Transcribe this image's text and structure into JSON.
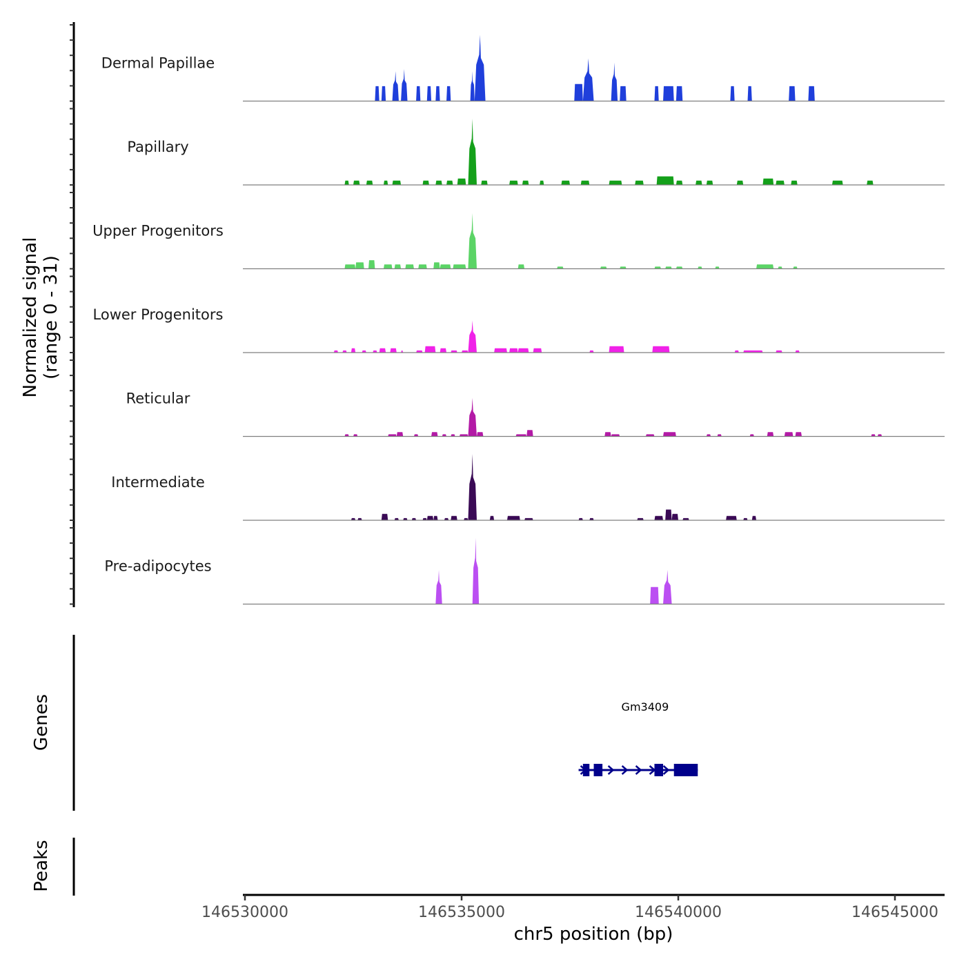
{
  "chart_data": {
    "type": "area",
    "title": "",
    "ylabel": "Normalized signal",
    "ylabel_range": "(range 0 - 31)",
    "ylim": [
      0,
      31
    ],
    "xlabel": "chr5 position (bp)",
    "xlim": [
      146530000,
      146546000
    ],
    "x_ticks": [
      146530000,
      146535000,
      146540000,
      146545000
    ],
    "x_tick_labels": [
      "146530000",
      "146535000",
      "146540000",
      "146545000"
    ],
    "series": [
      {
        "name": "Dermal Papillae",
        "color": "#1f3fdb",
        "peaks": [
          {
            "start": 146533000,
            "end": 146533100,
            "value": 7
          },
          {
            "start": 146533150,
            "end": 146533250,
            "value": 7
          },
          {
            "start": 146533400,
            "end": 146533550,
            "value": 14
          },
          {
            "start": 146533600,
            "end": 146533750,
            "value": 15
          },
          {
            "start": 146533950,
            "end": 146534050,
            "value": 7
          },
          {
            "start": 146534200,
            "end": 146534300,
            "value": 7
          },
          {
            "start": 146534400,
            "end": 146534500,
            "value": 7
          },
          {
            "start": 146534650,
            "end": 146534750,
            "value": 7
          },
          {
            "start": 146535200,
            "end": 146535300,
            "value": 14
          },
          {
            "start": 146535300,
            "end": 146535550,
            "value": 31
          },
          {
            "start": 146537600,
            "end": 146537800,
            "value": 8
          },
          {
            "start": 146537800,
            "end": 146538050,
            "value": 20
          },
          {
            "start": 146538450,
            "end": 146538600,
            "value": 18
          },
          {
            "start": 146538650,
            "end": 146538800,
            "value": 7
          },
          {
            "start": 146539450,
            "end": 146539550,
            "value": 7
          },
          {
            "start": 146539650,
            "end": 146539900,
            "value": 7
          },
          {
            "start": 146539950,
            "end": 146540100,
            "value": 7
          },
          {
            "start": 146541200,
            "end": 146541300,
            "value": 7
          },
          {
            "start": 146541600,
            "end": 146541700,
            "value": 7
          },
          {
            "start": 146542550,
            "end": 146542700,
            "value": 7
          },
          {
            "start": 146543000,
            "end": 146543150,
            "value": 7
          }
        ]
      },
      {
        "name": "Papillary",
        "color": "#14a01a",
        "peaks": [
          {
            "start": 146532300,
            "end": 146532400,
            "value": 2
          },
          {
            "start": 146532500,
            "end": 146532650,
            "value": 2
          },
          {
            "start": 146532800,
            "end": 146532950,
            "value": 2
          },
          {
            "start": 146533200,
            "end": 146533300,
            "value": 2
          },
          {
            "start": 146533400,
            "end": 146533600,
            "value": 2
          },
          {
            "start": 146534100,
            "end": 146534250,
            "value": 2
          },
          {
            "start": 146534400,
            "end": 146534550,
            "value": 2
          },
          {
            "start": 146534650,
            "end": 146534800,
            "value": 2
          },
          {
            "start": 146534900,
            "end": 146535100,
            "value": 3
          },
          {
            "start": 146535150,
            "end": 146535350,
            "value": 31
          },
          {
            "start": 146535450,
            "end": 146535600,
            "value": 2
          },
          {
            "start": 146536100,
            "end": 146536300,
            "value": 2
          },
          {
            "start": 146536400,
            "end": 146536550,
            "value": 2
          },
          {
            "start": 146536800,
            "end": 146536900,
            "value": 2
          },
          {
            "start": 146537300,
            "end": 146537500,
            "value": 2
          },
          {
            "start": 146537750,
            "end": 146537950,
            "value": 2
          },
          {
            "start": 146538400,
            "end": 146538700,
            "value": 2
          },
          {
            "start": 146539000,
            "end": 146539200,
            "value": 2
          },
          {
            "start": 146539500,
            "end": 146539900,
            "value": 4
          },
          {
            "start": 146539950,
            "end": 146540100,
            "value": 2
          },
          {
            "start": 146540400,
            "end": 146540550,
            "value": 2
          },
          {
            "start": 146540650,
            "end": 146540800,
            "value": 2
          },
          {
            "start": 146541350,
            "end": 146541500,
            "value": 2
          },
          {
            "start": 146541950,
            "end": 146542200,
            "value": 3
          },
          {
            "start": 146542250,
            "end": 146542450,
            "value": 2
          },
          {
            "start": 146542600,
            "end": 146542750,
            "value": 2
          },
          {
            "start": 146543550,
            "end": 146543800,
            "value": 2
          },
          {
            "start": 146544350,
            "end": 146544500,
            "value": 2
          }
        ]
      },
      {
        "name": "Upper Progenitors",
        "color": "#5bd466",
        "peaks": [
          {
            "start": 146532300,
            "end": 146532550,
            "value": 2
          },
          {
            "start": 146532550,
            "end": 146532750,
            "value": 3
          },
          {
            "start": 146532850,
            "end": 146533000,
            "value": 4
          },
          {
            "start": 146533200,
            "end": 146533400,
            "value": 2
          },
          {
            "start": 146533450,
            "end": 146533600,
            "value": 2
          },
          {
            "start": 146533700,
            "end": 146533900,
            "value": 2
          },
          {
            "start": 146534000,
            "end": 146534200,
            "value": 2
          },
          {
            "start": 146534350,
            "end": 146534500,
            "value": 3
          },
          {
            "start": 146534500,
            "end": 146534750,
            "value": 2
          },
          {
            "start": 146534800,
            "end": 146535100,
            "value": 2
          },
          {
            "start": 146535150,
            "end": 146535350,
            "value": 26
          },
          {
            "start": 146536300,
            "end": 146536450,
            "value": 2
          },
          {
            "start": 146537200,
            "end": 146537350,
            "value": 1
          },
          {
            "start": 146538200,
            "end": 146538350,
            "value": 1
          },
          {
            "start": 146538650,
            "end": 146538800,
            "value": 1
          },
          {
            "start": 146539450,
            "end": 146539600,
            "value": 1
          },
          {
            "start": 146539700,
            "end": 146539850,
            "value": 1
          },
          {
            "start": 146539950,
            "end": 146540100,
            "value": 1
          },
          {
            "start": 146540450,
            "end": 146540550,
            "value": 1
          },
          {
            "start": 146540850,
            "end": 146540950,
            "value": 1
          },
          {
            "start": 146541800,
            "end": 146542200,
            "value": 2
          },
          {
            "start": 146542300,
            "end": 146542400,
            "value": 1
          },
          {
            "start": 146542650,
            "end": 146542750,
            "value": 1
          }
        ]
      },
      {
        "name": "Lower Progenitors",
        "color": "#f022e8",
        "peaks": [
          {
            "start": 146532050,
            "end": 146532150,
            "value": 1
          },
          {
            "start": 146532250,
            "end": 146532350,
            "value": 1
          },
          {
            "start": 146532450,
            "end": 146532550,
            "value": 2
          },
          {
            "start": 146532700,
            "end": 146532800,
            "value": 1
          },
          {
            "start": 146532950,
            "end": 146533050,
            "value": 1
          },
          {
            "start": 146533100,
            "end": 146533250,
            "value": 2
          },
          {
            "start": 146533350,
            "end": 146533500,
            "value": 2
          },
          {
            "start": 146533600,
            "end": 146533650,
            "value": 1
          },
          {
            "start": 146533950,
            "end": 146534100,
            "value": 1
          },
          {
            "start": 146534150,
            "end": 146534400,
            "value": 3
          },
          {
            "start": 146534500,
            "end": 146534650,
            "value": 2
          },
          {
            "start": 146534750,
            "end": 146534900,
            "value": 1
          },
          {
            "start": 146535000,
            "end": 146535150,
            "value": 1
          },
          {
            "start": 146535150,
            "end": 146535350,
            "value": 15
          },
          {
            "start": 146535750,
            "end": 146536050,
            "value": 2
          },
          {
            "start": 146536100,
            "end": 146536300,
            "value": 2
          },
          {
            "start": 146536300,
            "end": 146536550,
            "value": 2
          },
          {
            "start": 146536650,
            "end": 146536850,
            "value": 2
          },
          {
            "start": 146537950,
            "end": 146538050,
            "value": 1
          },
          {
            "start": 146538400,
            "end": 146538750,
            "value": 3
          },
          {
            "start": 146539400,
            "end": 146539800,
            "value": 3
          },
          {
            "start": 146541300,
            "end": 146541400,
            "value": 1
          },
          {
            "start": 146541500,
            "end": 146541950,
            "value": 1
          },
          {
            "start": 146542250,
            "end": 146542400,
            "value": 1
          },
          {
            "start": 146542700,
            "end": 146542800,
            "value": 1
          }
        ]
      },
      {
        "name": "Reticular",
        "color": "#b31aa6",
        "peaks": [
          {
            "start": 146532300,
            "end": 146532400,
            "value": 1
          },
          {
            "start": 146532500,
            "end": 146532600,
            "value": 1
          },
          {
            "start": 146533300,
            "end": 146533500,
            "value": 1
          },
          {
            "start": 146533500,
            "end": 146533650,
            "value": 2
          },
          {
            "start": 146533900,
            "end": 146534000,
            "value": 1
          },
          {
            "start": 146534300,
            "end": 146534450,
            "value": 2
          },
          {
            "start": 146534550,
            "end": 146534650,
            "value": 1
          },
          {
            "start": 146534750,
            "end": 146534850,
            "value": 1
          },
          {
            "start": 146534950,
            "end": 146535150,
            "value": 1
          },
          {
            "start": 146535150,
            "end": 146535350,
            "value": 18
          },
          {
            "start": 146535350,
            "end": 146535500,
            "value": 2
          },
          {
            "start": 146536250,
            "end": 146536500,
            "value": 1
          },
          {
            "start": 146536500,
            "end": 146536650,
            "value": 3
          },
          {
            "start": 146538300,
            "end": 146538450,
            "value": 2
          },
          {
            "start": 146538450,
            "end": 146538650,
            "value": 1
          },
          {
            "start": 146539250,
            "end": 146539450,
            "value": 1
          },
          {
            "start": 146539650,
            "end": 146539950,
            "value": 2
          },
          {
            "start": 146540650,
            "end": 146540750,
            "value": 1
          },
          {
            "start": 146540900,
            "end": 146541000,
            "value": 1
          },
          {
            "start": 146541650,
            "end": 146541750,
            "value": 1
          },
          {
            "start": 146542050,
            "end": 146542200,
            "value": 2
          },
          {
            "start": 146542450,
            "end": 146542650,
            "value": 2
          },
          {
            "start": 146542700,
            "end": 146542850,
            "value": 2
          },
          {
            "start": 146544450,
            "end": 146544550,
            "value": 1
          },
          {
            "start": 146544600,
            "end": 146544700,
            "value": 1
          }
        ]
      },
      {
        "name": "Intermediate",
        "color": "#3a0a55",
        "peaks": [
          {
            "start": 146532450,
            "end": 146532550,
            "value": 1
          },
          {
            "start": 146532600,
            "end": 146532700,
            "value": 1
          },
          {
            "start": 146533150,
            "end": 146533300,
            "value": 3
          },
          {
            "start": 146533450,
            "end": 146533550,
            "value": 1
          },
          {
            "start": 146533650,
            "end": 146533750,
            "value": 1
          },
          {
            "start": 146533850,
            "end": 146533950,
            "value": 1
          },
          {
            "start": 146534100,
            "end": 146534200,
            "value": 1
          },
          {
            "start": 146534200,
            "end": 146534350,
            "value": 2
          },
          {
            "start": 146534350,
            "end": 146534450,
            "value": 2
          },
          {
            "start": 146534600,
            "end": 146534700,
            "value": 1
          },
          {
            "start": 146534750,
            "end": 146534900,
            "value": 2
          },
          {
            "start": 146535050,
            "end": 146535150,
            "value": 1
          },
          {
            "start": 146535150,
            "end": 146535350,
            "value": 31
          },
          {
            "start": 146535650,
            "end": 146535750,
            "value": 2
          },
          {
            "start": 146536050,
            "end": 146536350,
            "value": 2
          },
          {
            "start": 146536450,
            "end": 146536650,
            "value": 1
          },
          {
            "start": 146537700,
            "end": 146537800,
            "value": 1
          },
          {
            "start": 146537950,
            "end": 146538050,
            "value": 1
          },
          {
            "start": 146539050,
            "end": 146539200,
            "value": 1
          },
          {
            "start": 146539450,
            "end": 146539650,
            "value": 2
          },
          {
            "start": 146539700,
            "end": 146539850,
            "value": 5
          },
          {
            "start": 146539850,
            "end": 146540000,
            "value": 3
          },
          {
            "start": 146540100,
            "end": 146540250,
            "value": 1
          },
          {
            "start": 146541100,
            "end": 146541350,
            "value": 2
          },
          {
            "start": 146541500,
            "end": 146541600,
            "value": 1
          },
          {
            "start": 146541700,
            "end": 146541800,
            "value": 2
          }
        ]
      },
      {
        "name": "Pre-adipocytes",
        "color": "#bb4ff2",
        "peaks": [
          {
            "start": 146534400,
            "end": 146534550,
            "value": 16
          },
          {
            "start": 146535250,
            "end": 146535400,
            "value": 31
          },
          {
            "start": 146539350,
            "end": 146539550,
            "value": 8
          },
          {
            "start": 146539650,
            "end": 146539850,
            "value": 16
          }
        ]
      }
    ],
    "genes": [
      {
        "name": "Gm3409",
        "strand": "+",
        "start": 146537700,
        "end": 146540450,
        "color": "#00008b",
        "exons": [
          [
            146537800,
            146537950
          ],
          [
            146538050,
            146538250
          ],
          [
            146539450,
            146539650
          ],
          [
            146539900,
            146540450
          ]
        ]
      }
    ],
    "panels": [
      {
        "name": "Normalized signal"
      },
      {
        "name": "Genes"
      },
      {
        "name": "Peaks"
      }
    ]
  }
}
